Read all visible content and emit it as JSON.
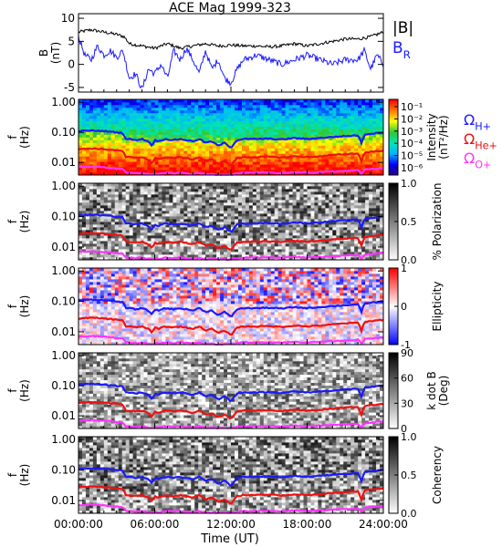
{
  "chart_data": {
    "type": "line",
    "title": "ACE Mag 1999-323",
    "xlabel": "Time (UT)",
    "x_ticks": [
      "00:00:00",
      "06:00:00",
      "12:00:00",
      "18:00:00",
      "24:00:00"
    ],
    "xlim_hours": [
      0,
      24
    ],
    "panels": [
      {
        "id": "field",
        "type": "line",
        "ylabel": "B",
        "yunit": "(nT)",
        "ylim": [
          -6,
          11
        ],
        "y_ticks": [
          "10",
          "5",
          "0",
          "-5"
        ],
        "y_tick_values": [
          10,
          5,
          0,
          -5
        ],
        "legend": [
          {
            "label": "|B|",
            "color": "#000000"
          },
          {
            "label": "B",
            "sub": "R",
            "color": "#1a1aff"
          }
        ],
        "series": [
          {
            "name": "|B|",
            "color": "#000000",
            "x": [
              0,
              1,
              2,
              3,
              3.6,
              4,
              5,
              6,
              7,
              8,
              9,
              10,
              11,
              12,
              13,
              14,
              15,
              16,
              17,
              18,
              19,
              20,
              21,
              22,
              23,
              24
            ],
            "y": [
              7,
              7.5,
              7,
              6.5,
              6,
              4.5,
              4,
              3.5,
              4.5,
              3.5,
              4,
              4.5,
              4,
              4.2,
              4,
              4,
              3.8,
              4,
              4.5,
              4,
              4.5,
              5,
              5.5,
              5.5,
              6,
              7
            ]
          },
          {
            "name": "B_R",
            "color": "#1a1aff",
            "x": [
              0,
              0.5,
              1,
              1.5,
              2,
              2.5,
              3,
              3.5,
              4,
              4.5,
              5,
              5.5,
              6,
              6.5,
              7,
              7.5,
              8,
              8.5,
              9,
              9.5,
              10,
              10.5,
              11,
              11.5,
              12,
              12.5,
              13,
              14,
              15,
              16,
              17,
              18,
              19,
              20,
              21,
              22,
              22.5,
              23,
              23.5,
              24
            ],
            "y": [
              6,
              2,
              1,
              4,
              2,
              3,
              1.5,
              3,
              -3,
              -2,
              -5.5,
              -1,
              -2,
              0,
              -3,
              3,
              1,
              3.5,
              1,
              -2,
              3,
              -1,
              1,
              -3,
              -4,
              -1,
              1,
              2,
              1,
              0,
              1,
              2,
              1,
              0,
              1,
              1,
              3,
              -1,
              2,
              0
            ]
          }
        ]
      },
      {
        "id": "intensity",
        "type": "heatmap",
        "ylabel": "f",
        "yunit": "(Hz)",
        "colorbar": {
          "title": "Intensity",
          "unit": "(nT²/Hz)",
          "ticks": [
            "10⁻¹",
            "10⁻²",
            "10⁻³",
            "10⁻⁴",
            "10⁻⁵",
            "10⁻⁶"
          ],
          "tick_values": [
            -1,
            -2,
            -3,
            -4,
            -5,
            -6
          ],
          "range": [
            -6.6,
            -0.4
          ],
          "colors": [
            "#2a0080",
            "#0000ff",
            "#00b4ff",
            "#00e6b4",
            "#32c832",
            "#ffff00",
            "#ff7800",
            "#ff0000"
          ]
        },
        "legend": [
          {
            "label": "Ω",
            "sub": "H+",
            "color": "#1a1aff"
          },
          {
            "label": "Ω",
            "sub": "He+",
            "color": "#ee1111"
          },
          {
            "label": "Ω",
            "sub": "O+",
            "color": "#ff33ff"
          }
        ]
      },
      {
        "id": "polarization",
        "type": "heatmap",
        "ylabel": "f",
        "yunit": "(Hz)",
        "colorbar": {
          "title": "% Polarization",
          "ticks": [
            "1.0",
            "0.5",
            "0.0"
          ],
          "tick_values": [
            1,
            0.5,
            0
          ],
          "range": [
            0,
            1
          ],
          "colors": [
            "#ffffff",
            "#000000"
          ]
        }
      },
      {
        "id": "ellipticity",
        "type": "heatmap",
        "ylabel": "f",
        "yunit": "(Hz)",
        "colorbar": {
          "title": "Ellipticity",
          "ticks": [
            "1",
            "0",
            "-1"
          ],
          "tick_values": [
            1,
            0,
            -1
          ],
          "range": [
            -1,
            1
          ],
          "colors": [
            "#0000ff",
            "#ffffff",
            "#ff0000"
          ]
        }
      },
      {
        "id": "kdotb",
        "type": "heatmap",
        "ylabel": "f",
        "yunit": "(Hz)",
        "colorbar": {
          "title": "k dot B",
          "unit": "(Deg)",
          "ticks": [
            "90",
            "60",
            "30",
            "0"
          ],
          "tick_values": [
            90,
            60,
            30,
            0
          ],
          "range": [
            0,
            90
          ],
          "colors": [
            "#ffffff",
            "#000000"
          ]
        }
      },
      {
        "id": "coherency",
        "type": "heatmap",
        "ylabel": "f",
        "yunit": "(Hz)",
        "colorbar": {
          "title": "Coherency",
          "ticks": [
            "1.0",
            "0.5",
            "0.0"
          ],
          "tick_values": [
            1,
            0.5,
            0
          ],
          "range": [
            0,
            1
          ],
          "colors": [
            "#ffffff",
            "#000000"
          ]
        }
      }
    ],
    "frequency_axis": {
      "scale": "log",
      "ylim_hz": [
        0.0038,
        1.25
      ],
      "y_ticks": [
        "1.00",
        "0.10",
        "0.01"
      ],
      "y_tick_values": [
        1.0,
        0.1,
        0.01
      ]
    },
    "gyrofrequency_lines": [
      {
        "name": "ΩH+",
        "color": "#1a1aff",
        "x": [
          0,
          1,
          2,
          3,
          3.5,
          3.7,
          4,
          4.5,
          5,
          5.5,
          5.8,
          6,
          6.3,
          6.8,
          7.5,
          8,
          9,
          9.5,
          10,
          10.5,
          11,
          11.5,
          12,
          12.5,
          13,
          14,
          15,
          16,
          17,
          18,
          19,
          20,
          21,
          22,
          22.3,
          22.5,
          23,
          24
        ],
        "y": [
          0.11,
          0.115,
          0.11,
          0.1,
          0.095,
          0.06,
          0.06,
          0.055,
          0.06,
          0.05,
          0.035,
          0.055,
          0.05,
          0.06,
          0.055,
          0.06,
          0.05,
          0.06,
          0.045,
          0.05,
          0.035,
          0.045,
          0.03,
          0.055,
          0.06,
          0.06,
          0.062,
          0.058,
          0.065,
          0.06,
          0.065,
          0.07,
          0.075,
          0.08,
          0.04,
          0.085,
          0.09,
          0.1
        ]
      },
      {
        "name": "ΩHe+",
        "color": "#ee1111",
        "x": [
          0,
          1,
          2,
          3,
          3.5,
          3.7,
          4,
          4.5,
          5,
          5.5,
          5.8,
          6,
          6.3,
          6.8,
          7.5,
          8,
          9,
          9.5,
          10,
          10.5,
          11,
          11.5,
          12,
          12.5,
          13,
          14,
          15,
          16,
          17,
          18,
          19,
          20,
          21,
          22,
          22.3,
          22.5,
          23,
          24
        ],
        "y": [
          0.0275,
          0.029,
          0.0275,
          0.025,
          0.024,
          0.015,
          0.015,
          0.014,
          0.015,
          0.0125,
          0.009,
          0.014,
          0.0125,
          0.015,
          0.014,
          0.015,
          0.0125,
          0.015,
          0.011,
          0.0125,
          0.009,
          0.011,
          0.0075,
          0.014,
          0.015,
          0.015,
          0.0155,
          0.0145,
          0.016,
          0.015,
          0.016,
          0.0175,
          0.019,
          0.02,
          0.01,
          0.021,
          0.0225,
          0.025
        ]
      },
      {
        "name": "ΩO+",
        "color": "#ff33ff",
        "x": [
          0,
          1,
          2,
          3,
          3.5,
          3.7,
          4,
          4.5,
          5,
          5.5,
          5.8,
          6,
          6.3,
          6.8,
          7.5,
          8,
          9,
          9.5,
          10,
          10.5,
          11,
          11.5,
          12,
          12.5,
          13,
          14,
          15,
          16,
          17,
          18,
          19,
          20,
          21,
          22,
          22.3,
          22.5,
          23,
          24
        ],
        "y": [
          0.0069,
          0.0072,
          0.0069,
          0.0063,
          0.006,
          0.0045,
          0.0045,
          0.0043,
          0.0045,
          0.0041,
          0.0039,
          0.0043,
          0.0041,
          0.0045,
          0.0043,
          0.0045,
          0.0041,
          0.0045,
          0.004,
          0.0041,
          0.0039,
          0.004,
          0.0039,
          0.0043,
          0.0045,
          0.0045,
          0.0046,
          0.0044,
          0.0047,
          0.0045,
          0.0047,
          0.005,
          0.0052,
          0.0055,
          0.004,
          0.0057,
          0.006,
          0.0065
        ]
      }
    ]
  }
}
